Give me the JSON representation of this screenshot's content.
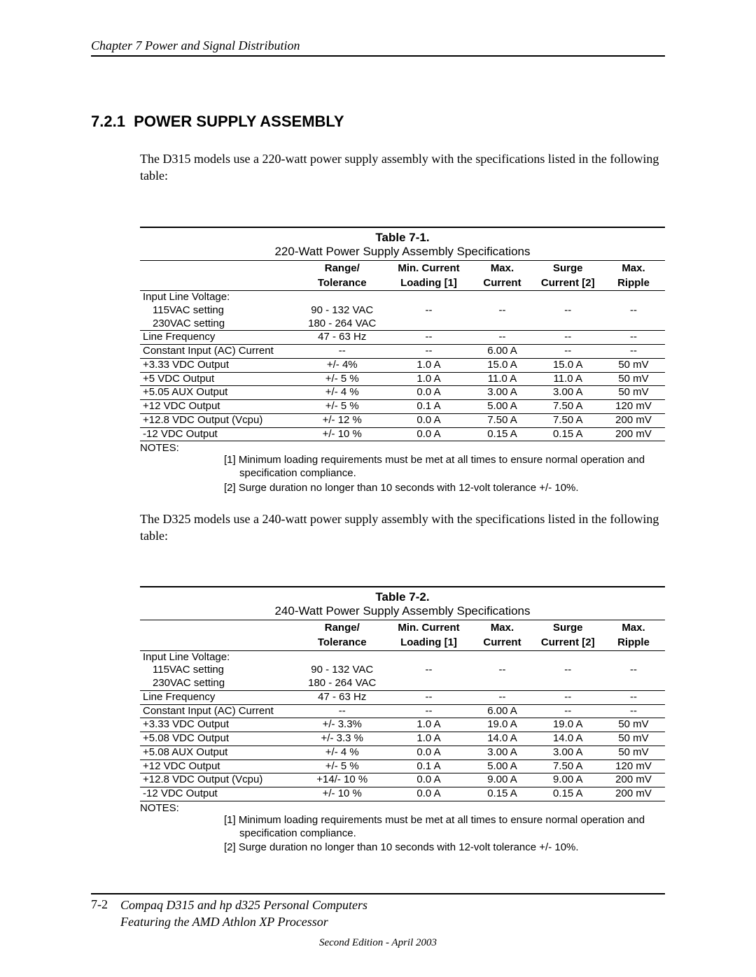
{
  "header": {
    "running": "Chapter 7  Power and Signal Distribution"
  },
  "section": {
    "number": "7.2.1",
    "title": "POWER SUPPLY ASSEMBLY"
  },
  "intro1": "The D315 models use a 220-watt power supply assembly with the specifications listed in the following table:",
  "intro2": "The D325 models use a 240-watt power supply assembly with the specifications listed in the following table:",
  "columns": {
    "c1a": "Range/",
    "c1b": "Tolerance",
    "c2a": "Min. Current",
    "c2b": "Loading [1]",
    "c3a": "Max.",
    "c3b": "Current",
    "c4a": "Surge",
    "c4b": "Current [2]",
    "c5a": "Max.",
    "c5b": "Ripple"
  },
  "table1": {
    "number": "Table 7-1.",
    "caption": "220-Watt Power Supply Assembly Specifications",
    "rows": [
      {
        "label": "Input Line Voltage:",
        "indent": false,
        "v": [
          "",
          "",
          "",
          "",
          ""
        ]
      },
      {
        "label": "115VAC setting",
        "indent": true,
        "v": [
          "90 - 132 VAC",
          "--",
          "--",
          "--",
          "--"
        ]
      },
      {
        "label": "230VAC setting",
        "indent": true,
        "v": [
          "180 - 264 VAC",
          "",
          "",
          "",
          ""
        ]
      },
      {
        "sep": true,
        "label": "Line Frequency",
        "v": [
          "47 - 63 Hz",
          "--",
          "--",
          "--",
          "--"
        ]
      },
      {
        "sep": true,
        "label": "Constant Input (AC) Current",
        "v": [
          "--",
          "--",
          "6.00 A",
          "--",
          "--"
        ]
      },
      {
        "sep": true,
        "label": "+3.33 VDC Output",
        "v": [
          "+/- 4%",
          "1.0 A",
          "15.0 A",
          "15.0 A",
          "50 mV"
        ]
      },
      {
        "sep": true,
        "label": "+5 VDC Output",
        "v": [
          "+/- 5 %",
          "1.0 A",
          "11.0 A",
          "11.0 A",
          "50 mV"
        ]
      },
      {
        "sep": true,
        "label": "+5.05 AUX Output",
        "v": [
          "+/- 4 %",
          "0.0 A",
          "3.00 A",
          "3.00 A",
          "50 mV"
        ]
      },
      {
        "sep": true,
        "label": "+12 VDC Output",
        "v": [
          "+/- 5 %",
          "0.1 A",
          "5.00 A",
          "7.50 A",
          "120 mV"
        ]
      },
      {
        "sep": true,
        "label": "+12.8 VDC Output (Vcpu)",
        "v": [
          "+/- 12 %",
          "0.0 A",
          "7.50 A",
          "7.50 A",
          "200 mV"
        ]
      },
      {
        "sep": true,
        "label": "-12 VDC Output",
        "v": [
          "+/- 10 %",
          "0.0 A",
          "0.15 A",
          "0.15 A",
          "200 mV"
        ]
      }
    ]
  },
  "table2": {
    "number": "Table 7-2.",
    "caption": "240-Watt Power Supply Assembly Specifications",
    "rows": [
      {
        "label": "Input Line Voltage:",
        "indent": false,
        "v": [
          "",
          "",
          "",
          "",
          ""
        ]
      },
      {
        "label": "115VAC setting",
        "indent": true,
        "v": [
          "90 - 132 VAC",
          "--",
          "--",
          "--",
          "--"
        ]
      },
      {
        "label": "230VAC setting",
        "indent": true,
        "v": [
          "180 - 264 VAC",
          "",
          "",
          "",
          ""
        ]
      },
      {
        "sep": true,
        "label": "Line Frequency",
        "v": [
          "47 - 63 Hz",
          "--",
          "--",
          "--",
          "--"
        ]
      },
      {
        "sep": true,
        "label": "Constant Input (AC) Current",
        "v": [
          "--",
          "--",
          "6.00 A",
          "--",
          "--"
        ]
      },
      {
        "sep": true,
        "label": "+3.33 VDC Output",
        "v": [
          "+/- 3.3%",
          "1.0 A",
          "19.0 A",
          "19.0 A",
          "50 mV"
        ]
      },
      {
        "sep": true,
        "label": "+5.08 VDC Output",
        "v": [
          "+/- 3.3 %",
          "1.0 A",
          "14.0 A",
          "14.0 A",
          "50 mV"
        ]
      },
      {
        "sep": true,
        "label": "+5.08 AUX Output",
        "v": [
          "+/- 4 %",
          "0.0 A",
          "3.00 A",
          "3.00 A",
          "50 mV"
        ]
      },
      {
        "sep": true,
        "label": "+12 VDC Output",
        "v": [
          "+/- 5 %",
          "0.1 A",
          "5.00 A",
          "7.50 A",
          "120 mV"
        ]
      },
      {
        "sep": true,
        "label": "+12.8 VDC Output (Vcpu)",
        "v": [
          "+14/- 10 %",
          "0.0 A",
          "9.00 A",
          "9.00 A",
          "200 mV"
        ]
      },
      {
        "sep": true,
        "label": "-12 VDC Output",
        "v": [
          "+/- 10 %",
          "0.0 A",
          "0.15 A",
          "0.15 A",
          "200 mV"
        ]
      }
    ]
  },
  "notes": {
    "label": "NOTES:",
    "n1": "[1] Minimum loading requirements must be met at all times to ensure normal operation and specification compliance.",
    "n2": "[2] Surge duration no longer than 10 seconds with 12-volt tolerance +/- 10%."
  },
  "footer": {
    "pageNo": "7-2",
    "title1": "Compaq D315 and hp d325 Personal Computers",
    "title2": "Featuring the AMD Athlon XP Processor",
    "edition": "Second Edition - April 2003"
  }
}
